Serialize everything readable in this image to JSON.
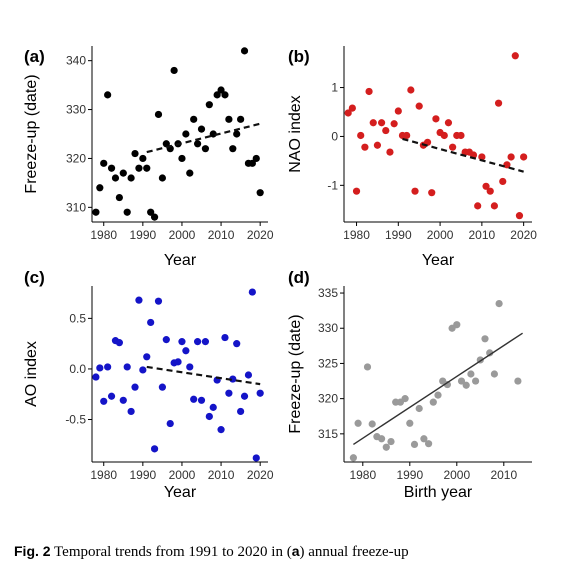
{
  "chart_data": [
    {
      "type": "scatter",
      "panel_label": "(a)",
      "xlabel": "Year",
      "ylabel": "Freeze-up (date)",
      "xlim": [
        1977,
        2022
      ],
      "ylim": [
        307,
        343
      ],
      "xticks": [
        1980,
        1990,
        2000,
        2010,
        2020
      ],
      "yticks": [
        310,
        320,
        330,
        340
      ],
      "color": "#000000",
      "trend": {
        "style": "dashed",
        "x": [
          1991,
          2020
        ],
        "y": [
          321.3,
          327.1
        ]
      },
      "series": [
        {
          "x": [
            1978,
            1979,
            1980,
            1981,
            1982,
            1983,
            1984,
            1985,
            1986,
            1987,
            1988,
            1989,
            1990,
            1991,
            1992,
            1993,
            1994,
            1995,
            1996,
            1997,
            1998,
            1999,
            2000,
            2001,
            2002,
            2003,
            2004,
            2005,
            2006,
            2007,
            2008,
            2009,
            2010,
            2011,
            2012,
            2013,
            2014,
            2015,
            2016,
            2017,
            2018,
            2019,
            2020
          ],
          "y": [
            309,
            314,
            319,
            333,
            318,
            316,
            312,
            317,
            309,
            316,
            321,
            318,
            320,
            318,
            309,
            308,
            329,
            316,
            323,
            322,
            338,
            323,
            320,
            325,
            317,
            328,
            323,
            326,
            322,
            331,
            325,
            333,
            334,
            333,
            328,
            322,
            325,
            328,
            342,
            319,
            319,
            320,
            313
          ]
        }
      ]
    },
    {
      "type": "scatter",
      "panel_label": "(b)",
      "xlabel": "Year",
      "ylabel": "NAO index",
      "xlim": [
        1977,
        2022
      ],
      "ylim": [
        -1.75,
        1.85
      ],
      "xticks": [
        1980,
        1990,
        2000,
        2010,
        2020
      ],
      "yticks": [
        -1,
        0,
        1
      ],
      "color": "#d41e1e",
      "trend": {
        "style": "dashed",
        "x": [
          1991,
          2020
        ],
        "y": [
          -0.05,
          -0.72
        ]
      },
      "series": [
        {
          "x": [
            1978,
            1979,
            1980,
            1981,
            1982,
            1983,
            1984,
            1985,
            1986,
            1987,
            1988,
            1989,
            1990,
            1991,
            1992,
            1993,
            1994,
            1995,
            1996,
            1997,
            1998,
            1999,
            2000,
            2001,
            2002,
            2003,
            2004,
            2005,
            2006,
            2007,
            2008,
            2009,
            2010,
            2011,
            2012,
            2013,
            2014,
            2015,
            2016,
            2017,
            2018,
            2019,
            2020
          ],
          "y": [
            0.48,
            0.58,
            -1.12,
            0.02,
            -0.22,
            0.92,
            0.28,
            -0.18,
            0.28,
            0.12,
            -0.32,
            0.26,
            0.52,
            0.02,
            0.02,
            0.95,
            -1.12,
            0.62,
            -0.18,
            -0.12,
            -1.15,
            0.36,
            0.08,
            0.02,
            0.28,
            -0.22,
            0.02,
            0.02,
            -0.32,
            -0.32,
            -0.38,
            -1.42,
            -0.42,
            -1.02,
            -1.12,
            -1.42,
            0.68,
            -0.92,
            -0.58,
            -0.42,
            1.65,
            -1.62,
            -0.42
          ]
        }
      ]
    },
    {
      "type": "scatter",
      "panel_label": "(c)",
      "xlabel": "Year",
      "ylabel": "AO index",
      "xlim": [
        1977,
        2022
      ],
      "ylim": [
        -0.92,
        0.82
      ],
      "xticks": [
        1980,
        1990,
        2000,
        2010,
        2020
      ],
      "yticks": [
        -0.5,
        0.0,
        0.5
      ],
      "ytick_labels": [
        "-0.5",
        "0.0",
        "0.5"
      ],
      "color": "#1414c8",
      "trend": {
        "style": "dashed",
        "x": [
          1991,
          2020
        ],
        "y": [
          0.02,
          -0.15
        ]
      },
      "series": [
        {
          "x": [
            1978,
            1979,
            1980,
            1981,
            1982,
            1983,
            1984,
            1985,
            1986,
            1987,
            1988,
            1989,
            1990,
            1991,
            1992,
            1993,
            1994,
            1995,
            1996,
            1997,
            1998,
            1999,
            2000,
            2001,
            2002,
            2003,
            2004,
            2005,
            2006,
            2007,
            2008,
            2009,
            2010,
            2011,
            2012,
            2013,
            2014,
            2015,
            2016,
            2017,
            2018,
            2019,
            2020
          ],
          "y": [
            -0.08,
            0.01,
            -0.32,
            0.02,
            -0.27,
            0.28,
            0.26,
            -0.31,
            0.02,
            -0.42,
            -0.18,
            0.68,
            -0.01,
            0.12,
            0.46,
            -0.79,
            0.67,
            -0.18,
            0.29,
            -0.54,
            0.06,
            0.07,
            0.27,
            0.18,
            0.02,
            -0.3,
            0.27,
            -0.31,
            0.27,
            -0.47,
            -0.38,
            -0.11,
            -0.6,
            0.31,
            -0.24,
            -0.1,
            0.25,
            -0.42,
            -0.27,
            -0.06,
            0.76,
            -0.88,
            -0.24
          ]
        }
      ]
    },
    {
      "type": "scatter",
      "panel_label": "(d)",
      "xlabel": "Birth year",
      "ylabel": "Freeze-up (date)",
      "xlim": [
        1976,
        2016
      ],
      "ylim": [
        311,
        336
      ],
      "xticks": [
        1980,
        1990,
        2000,
        2010
      ],
      "yticks": [
        315,
        320,
        325,
        330,
        335
      ],
      "color": "#9a9a9a",
      "trend": {
        "style": "solid",
        "x": [
          1978,
          2014
        ],
        "y": [
          313.5,
          329.3
        ]
      },
      "series": [
        {
          "x": [
            1978,
            1979,
            1981,
            1982,
            1983,
            1984,
            1985,
            1986,
            1987,
            1988,
            1989,
            1990,
            1991,
            1992,
            1993,
            1994,
            1995,
            1996,
            1997,
            1998,
            1999,
            2000,
            2001,
            2002,
            2003,
            2004,
            2005,
            2006,
            2007,
            2008,
            2009,
            2013
          ],
          "y": [
            311.6,
            316.5,
            324.5,
            316.4,
            314.6,
            314.3,
            313.1,
            313.9,
            319.5,
            319.5,
            320.0,
            316.5,
            313.5,
            318.6,
            314.3,
            313.6,
            319.5,
            320.5,
            322.5,
            322.0,
            330.0,
            330.5,
            322.5,
            321.9,
            323.5,
            322.5,
            325.5,
            328.5,
            326.5,
            323.5,
            333.5,
            322.5
          ]
        }
      ]
    }
  ],
  "caption": {
    "prefix": "Fig. 2",
    "text_1": "  Temporal trends from 1991 to 2020 in (",
    "bold_a": "a",
    "text_2": ") annual freeze-up"
  }
}
